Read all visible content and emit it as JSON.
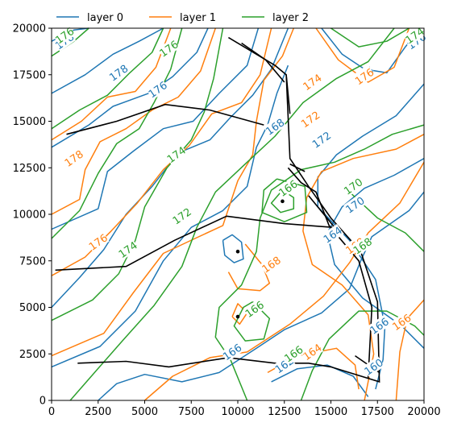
{
  "chart_data": {
    "type": "contour",
    "title": "",
    "xlabel": "",
    "ylabel": "",
    "xlim": [
      0,
      20000
    ],
    "ylim": [
      0,
      20000
    ],
    "xticks": [
      0,
      2500,
      5000,
      7500,
      10000,
      12500,
      15000,
      17500,
      20000
    ],
    "yticks": [
      0,
      2500,
      5000,
      7500,
      10000,
      12500,
      15000,
      17500,
      20000
    ],
    "grid": false,
    "legend_position": "top (outside, above axes)",
    "colors": {
      "layer 0": "#1f77b4",
      "layer 1": "#ff7f0e",
      "layer 2": "#2ca02c",
      "boundary": "#000000"
    },
    "series": [
      {
        "name": "layer 0",
        "contour_labels": [
          {
            "text": "178",
            "x": 700,
            "y": 19300
          },
          {
            "text": "178",
            "x": 3600,
            "y": 17600
          },
          {
            "text": "176",
            "x": 5700,
            "y": 16700
          },
          {
            "text": "176",
            "x": 19600,
            "y": 19300
          },
          {
            "text": "176",
            "x": 16800,
            "y": 17500
          },
          {
            "text": "168",
            "x": 12000,
            "y": 14700
          },
          {
            "text": "172",
            "x": 14500,
            "y": 14000
          },
          {
            "text": "170",
            "x": 16300,
            "y": 10500
          },
          {
            "text": "164",
            "x": 15100,
            "y": 8900
          },
          {
            "text": "166",
            "x": 9700,
            "y": 2600
          },
          {
            "text": "162",
            "x": 12500,
            "y": 1900
          },
          {
            "text": "160",
            "x": 17300,
            "y": 1800
          },
          {
            "text": "166",
            "x": 17600,
            "y": 4000
          }
        ]
      },
      {
        "name": "layer 1",
        "contour_labels": [
          {
            "text": "178",
            "x": 1200,
            "y": 13000
          },
          {
            "text": "176",
            "x": 2500,
            "y": 8500
          },
          {
            "text": "174",
            "x": 14000,
            "y": 17100
          },
          {
            "text": "176",
            "x": 16800,
            "y": 17400
          },
          {
            "text": "172",
            "x": 13900,
            "y": 15100
          },
          {
            "text": "168",
            "x": 11800,
            "y": 7300
          },
          {
            "text": "166",
            "x": 18800,
            "y": 4200
          },
          {
            "text": "164",
            "x": 14000,
            "y": 2600
          },
          {
            "text": "168",
            "x": 16300,
            "y": 8300
          }
        ]
      },
      {
        "name": "layer 2",
        "contour_labels": [
          {
            "text": "176",
            "x": 700,
            "y": 19600
          },
          {
            "text": "176",
            "x": 6300,
            "y": 18900
          },
          {
            "text": "174",
            "x": 19500,
            "y": 19600
          },
          {
            "text": "174",
            "x": 6700,
            "y": 13200
          },
          {
            "text": "172",
            "x": 7000,
            "y": 9900
          },
          {
            "text": "174",
            "x": 4100,
            "y": 8100
          },
          {
            "text": "166",
            "x": 12700,
            "y": 11400
          },
          {
            "text": "170",
            "x": 16200,
            "y": 11500
          },
          {
            "text": "166",
            "x": 10900,
            "y": 4900
          },
          {
            "text": "166",
            "x": 13000,
            "y": 2500
          },
          {
            "text": "168",
            "x": 16700,
            "y": 8300
          }
        ]
      },
      {
        "name": "boundary",
        "polylines": [
          [
            [
              800,
              14300
            ],
            [
              3500,
              15000
            ],
            [
              6100,
              15900
            ],
            [
              8500,
              15600
            ],
            [
              11400,
              14800
            ]
          ],
          [
            [
              9500,
              19500
            ],
            [
              12000,
              18000
            ],
            [
              12600,
              17500
            ],
            [
              12800,
              13000
            ],
            [
              13800,
              11500
            ],
            [
              15000,
              9800
            ],
            [
              16600,
              8000
            ],
            [
              17500,
              5300
            ],
            [
              17600,
              1000
            ],
            [
              15000,
              1800
            ],
            [
              13800,
              2000
            ],
            [
              12000,
              2000
            ],
            [
              9500,
              2300
            ],
            [
              6300,
              1800
            ],
            [
              4000,
              2100
            ],
            [
              1400,
              2000
            ]
          ],
          [
            [
              12500,
              17100
            ],
            [
              11500,
              18300
            ],
            [
              10200,
              19200
            ]
          ],
          [
            [
              12800,
              15400
            ],
            [
              12600,
              17500
            ]
          ],
          [
            [
              12800,
              12700
            ],
            [
              13600,
              12300
            ]
          ],
          [
            [
              200,
              7000
            ],
            [
              4000,
              7200
            ],
            [
              6600,
              8600
            ],
            [
              9400,
              9900
            ],
            [
              12500,
              9500
            ],
            [
              15100,
              9300
            ]
          ],
          [
            [
              13800,
              11000
            ],
            [
              15200,
              9300
            ]
          ],
          [
            [
              16300,
              2400
            ],
            [
              17600,
              1500
            ]
          ],
          [
            [
              12700,
              12500
            ],
            [
              13400,
              11700
            ],
            [
              14200,
              11200
            ],
            [
              14900,
              9400
            ],
            [
              16500,
              7500
            ],
            [
              17200,
              5000
            ],
            [
              17000,
              1200
            ]
          ]
        ],
        "points": [
          [
            12400,
            10700
          ],
          [
            10000,
            8000
          ],
          [
            10000,
            4500
          ]
        ]
      }
    ]
  }
}
